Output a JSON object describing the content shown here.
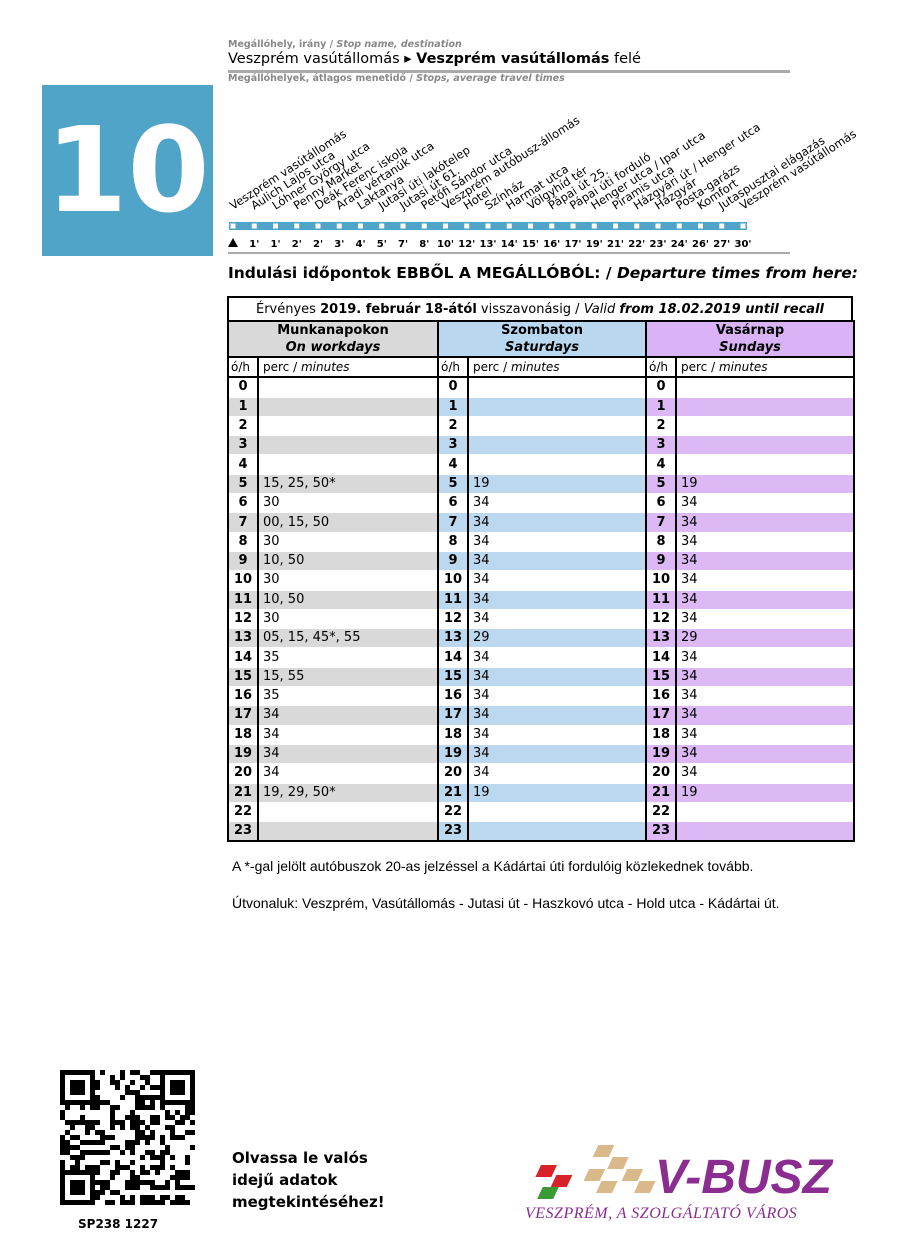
{
  "header": {
    "stop_label_hu": "Megállóhely, irány /",
    "stop_label_en": "Stop name, destination",
    "origin": "Veszprém vasútállomás",
    "destination": "Veszprém vasútállomás",
    "direction_suffix": "felé",
    "stops_label_hu": "Megállóhelyek, átlagos menetidő /",
    "stops_label_en": "Stops, average travel times",
    "route_number": "10"
  },
  "stops": [
    {
      "name": "Veszprém vasútállomás"
    },
    {
      "name": "Aulich Lajos utca",
      "time": "1'"
    },
    {
      "name": "Lóhner György utca",
      "time": "1'"
    },
    {
      "name": "Penny Market",
      "time": "2'"
    },
    {
      "name": "Deák Ferenc iskola",
      "time": "2'"
    },
    {
      "name": "Aradi vértanúk utca",
      "time": "3'"
    },
    {
      "name": "Laktanya",
      "time": "4'"
    },
    {
      "name": "Jutasi úti lakótelep",
      "time": "5'"
    },
    {
      "name": "Jutasi út 61.",
      "time": "7'"
    },
    {
      "name": "Petőfi Sándor utca",
      "time": "8'"
    },
    {
      "name": "Veszprém autóbusz-állomás",
      "time": "10'"
    },
    {
      "name": "Hotel",
      "time": "12'"
    },
    {
      "name": "Színház",
      "time": "13'"
    },
    {
      "name": "Harmat utca",
      "time": "14'"
    },
    {
      "name": "Völgyhíd tér",
      "time": "15'"
    },
    {
      "name": "Pápai út 25.",
      "time": "16'"
    },
    {
      "name": "Pápai úti forduló",
      "time": "17'"
    },
    {
      "name": "Henger utca / Ipar utca",
      "time": "19'"
    },
    {
      "name": "Piramis utca",
      "time": "21'"
    },
    {
      "name": "Házgyári út / Henger utca",
      "time": "22'"
    },
    {
      "name": "Házgyár",
      "time": "23'"
    },
    {
      "name": "Posta-garázs",
      "time": "24'"
    },
    {
      "name": "Komfort",
      "time": "26'"
    },
    {
      "name": "Jutaspusztai elágazás",
      "time": "27'"
    },
    {
      "name": "Veszprém vasútállomás",
      "time": "30'"
    }
  ],
  "departures_heading": {
    "hu": "Indulási időpontok EBBŐL A MEGÁLLÓBÓL: /",
    "en": "Departure times from here:"
  },
  "table": {
    "validity": {
      "part1": "Érvényes",
      "date_hu": "2019. február 18-ától",
      "part2": "visszavonásig /",
      "valid": "Valid",
      "en": "from 18.02.2019 until recall"
    },
    "days": [
      {
        "hu": "Munkanapokon",
        "en": "On workdays"
      },
      {
        "hu": "Szombaton",
        "en": "Saturdays"
      },
      {
        "hu": "Vasárnap",
        "en": "Sundays"
      }
    ],
    "hour_label": "ó/h",
    "minutes_label_hu": "perc /",
    "minutes_label_en": "minutes",
    "rows": [
      [
        0,
        null,
        null,
        null
      ],
      [
        1,
        null,
        null,
        null
      ],
      [
        2,
        null,
        null,
        null
      ],
      [
        3,
        null,
        null,
        null
      ],
      [
        4,
        null,
        null,
        null
      ],
      [
        5,
        "15, 25, 50*",
        "19",
        "19"
      ],
      [
        6,
        "30",
        "34",
        "34"
      ],
      [
        7,
        "00, 15, 50",
        "34",
        "34"
      ],
      [
        8,
        "30",
        "34",
        "34"
      ],
      [
        9,
        "10, 50",
        "34",
        "34"
      ],
      [
        10,
        "30",
        "34",
        "34"
      ],
      [
        11,
        "10, 50",
        "34",
        "34"
      ],
      [
        12,
        "30",
        "34",
        "34"
      ],
      [
        13,
        "05, 15, 45*, 55",
        "29",
        "29"
      ],
      [
        14,
        "35",
        "34",
        "34"
      ],
      [
        15,
        "15, 55",
        "34",
        "34"
      ],
      [
        16,
        "35",
        "34",
        "34"
      ],
      [
        17,
        "34",
        "34",
        "34"
      ],
      [
        18,
        "34",
        "34",
        "34"
      ],
      [
        19,
        "34",
        "34",
        "34"
      ],
      [
        20,
        "34",
        "34",
        "34"
      ],
      [
        21,
        "19, 29, 50*",
        "19",
        "19"
      ],
      [
        22,
        null,
        null,
        null
      ],
      [
        23,
        null,
        null,
        null
      ]
    ]
  },
  "notes": [
    "A *-gal jelölt autóbuszok 20-as jelzéssel a Kádártai úti fordulóig közlekednek tovább.",
    "Útvonaluk: Veszprém, Vasútállomás -  Jutasi út - Haszkovó utca - Hold utca - Kádártai út."
  ],
  "footer": {
    "qr_text": [
      "Olvassa le valós",
      "idejű adatok",
      "megtekintéséhez!"
    ],
    "code": "SP238 1227",
    "brand": "V-BUSZ",
    "slogan": "VESZPRÉM, A SZOLGÁLTATÓ VÁROS"
  }
}
